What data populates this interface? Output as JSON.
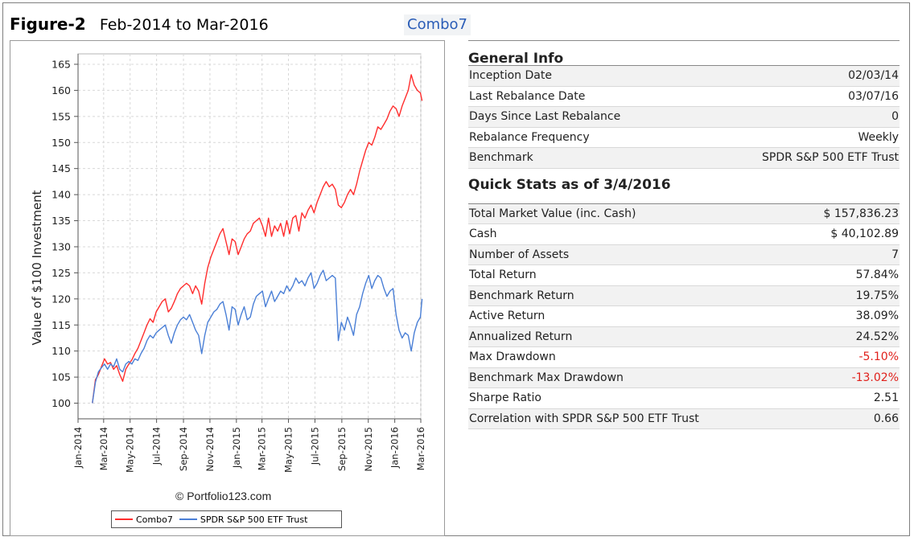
{
  "header": {
    "figure_label": "Figure-2",
    "date_range": "Feb-2014 to Mar-2016",
    "portfolio_tag": "Combo7"
  },
  "chart_data": {
    "type": "line",
    "ylabel": "Value of $100 Investment",
    "xlabel": "",
    "ylim": [
      97,
      167
    ],
    "yticks": [
      100,
      105,
      110,
      115,
      120,
      125,
      130,
      135,
      140,
      145,
      150,
      155,
      160,
      165
    ],
    "xticks": [
      "Jan-2014",
      "Mar-2014",
      "May-2014",
      "Jul-2014",
      "Sep-2014",
      "Nov-2014",
      "Jan-2015",
      "Mar-2015",
      "May-2015",
      "Jul-2015",
      "Sep-2015",
      "Nov-2015",
      "Jan-2016",
      "Mar-2016"
    ],
    "grid": true,
    "watermark": "© Portfolio123.com",
    "legend_position": "bottom",
    "series": [
      {
        "name": "Combo7",
        "color": "#ff2d2d",
        "points": [
          [
            "2014-02-03",
            100
          ],
          [
            "2014-02-10",
            104.5
          ],
          [
            "2014-02-17",
            105.5
          ],
          [
            "2014-02-24",
            107
          ],
          [
            "2014-03-03",
            108.5
          ],
          [
            "2014-03-10",
            107.5
          ],
          [
            "2014-03-17",
            107.8
          ],
          [
            "2014-03-24",
            106.5
          ],
          [
            "2014-03-31",
            107.2
          ],
          [
            "2014-04-07",
            105.5
          ],
          [
            "2014-04-14",
            104.2
          ],
          [
            "2014-04-21",
            106.5
          ],
          [
            "2014-04-28",
            107.5
          ],
          [
            "2014-05-05",
            108.3
          ],
          [
            "2014-05-12",
            109.5
          ],
          [
            "2014-05-19",
            110.5
          ],
          [
            "2014-05-26",
            112
          ],
          [
            "2014-06-02",
            113.5
          ],
          [
            "2014-06-09",
            115
          ],
          [
            "2014-06-16",
            116.2
          ],
          [
            "2014-06-23",
            115.5
          ],
          [
            "2014-06-30",
            117.5
          ],
          [
            "2014-07-07",
            118.5
          ],
          [
            "2014-07-14",
            119.5
          ],
          [
            "2014-07-21",
            120
          ],
          [
            "2014-07-28",
            117.5
          ],
          [
            "2014-08-04",
            118.2
          ],
          [
            "2014-08-11",
            119.5
          ],
          [
            "2014-08-18",
            121
          ],
          [
            "2014-08-25",
            122
          ],
          [
            "2014-09-01",
            122.5
          ],
          [
            "2014-09-08",
            123
          ],
          [
            "2014-09-15",
            122.5
          ],
          [
            "2014-09-22",
            121
          ],
          [
            "2014-09-29",
            122.5
          ],
          [
            "2014-10-06",
            121.5
          ],
          [
            "2014-10-13",
            119
          ],
          [
            "2014-10-20",
            123
          ],
          [
            "2014-10-27",
            126
          ],
          [
            "2014-11-03",
            128
          ],
          [
            "2014-11-10",
            129.5
          ],
          [
            "2014-11-17",
            131
          ],
          [
            "2014-11-24",
            132.5
          ],
          [
            "2014-12-01",
            133.5
          ],
          [
            "2014-12-08",
            131
          ],
          [
            "2014-12-15",
            128.5
          ],
          [
            "2014-12-22",
            131.5
          ],
          [
            "2014-12-29",
            131
          ],
          [
            "2015-01-05",
            128.5
          ],
          [
            "2015-01-12",
            130
          ],
          [
            "2015-01-19",
            131.5
          ],
          [
            "2015-01-26",
            132.5
          ],
          [
            "2015-02-02",
            133
          ],
          [
            "2015-02-09",
            134.5
          ],
          [
            "2015-02-16",
            135
          ],
          [
            "2015-02-23",
            135.5
          ],
          [
            "2015-03-02",
            134
          ],
          [
            "2015-03-09",
            132
          ],
          [
            "2015-03-16",
            135.5
          ],
          [
            "2015-03-23",
            132
          ],
          [
            "2015-03-30",
            134
          ],
          [
            "2015-04-06",
            133
          ],
          [
            "2015-04-13",
            134.5
          ],
          [
            "2015-04-20",
            132
          ],
          [
            "2015-04-27",
            135
          ],
          [
            "2015-05-04",
            132.5
          ],
          [
            "2015-05-11",
            135.5
          ],
          [
            "2015-05-18",
            136
          ],
          [
            "2015-05-25",
            133
          ],
          [
            "2015-06-01",
            136.5
          ],
          [
            "2015-06-08",
            135.5
          ],
          [
            "2015-06-15",
            137
          ],
          [
            "2015-06-22",
            138
          ],
          [
            "2015-06-29",
            136.5
          ],
          [
            "2015-07-06",
            138.5
          ],
          [
            "2015-07-13",
            140
          ],
          [
            "2015-07-20",
            141.5
          ],
          [
            "2015-07-27",
            142.5
          ],
          [
            "2015-08-03",
            141.5
          ],
          [
            "2015-08-10",
            142
          ],
          [
            "2015-08-17",
            141
          ],
          [
            "2015-08-24",
            138
          ],
          [
            "2015-08-31",
            137.5
          ],
          [
            "2015-09-07",
            138.5
          ],
          [
            "2015-09-14",
            140
          ],
          [
            "2015-09-21",
            141
          ],
          [
            "2015-09-28",
            140
          ],
          [
            "2015-10-05",
            142
          ],
          [
            "2015-10-12",
            144.5
          ],
          [
            "2015-10-19",
            146.5
          ],
          [
            "2015-10-26",
            148.5
          ],
          [
            "2015-11-02",
            150
          ],
          [
            "2015-11-09",
            149.5
          ],
          [
            "2015-11-16",
            151
          ],
          [
            "2015-11-23",
            153
          ],
          [
            "2015-11-30",
            152.5
          ],
          [
            "2015-12-07",
            153.5
          ],
          [
            "2015-12-14",
            154.5
          ],
          [
            "2015-12-21",
            156
          ],
          [
            "2015-12-28",
            157
          ],
          [
            "2016-01-04",
            156.5
          ],
          [
            "2016-01-11",
            155
          ],
          [
            "2016-01-18",
            157
          ],
          [
            "2016-01-25",
            158.5
          ],
          [
            "2016-02-01",
            160
          ],
          [
            "2016-02-08",
            163
          ],
          [
            "2016-02-15",
            161
          ],
          [
            "2016-02-22",
            160
          ],
          [
            "2016-02-29",
            159.5
          ],
          [
            "2016-03-04",
            158
          ]
        ]
      },
      {
        "name": "SPDR S&P 500 ETF Trust",
        "color": "#4a7fd6",
        "points": [
          [
            "2014-02-03",
            100
          ],
          [
            "2014-02-10",
            104
          ],
          [
            "2014-02-17",
            106
          ],
          [
            "2014-02-24",
            106.8
          ],
          [
            "2014-03-03",
            107.5
          ],
          [
            "2014-03-10",
            106.5
          ],
          [
            "2014-03-17",
            107.5
          ],
          [
            "2014-03-24",
            107
          ],
          [
            "2014-03-31",
            108.5
          ],
          [
            "2014-04-07",
            106.5
          ],
          [
            "2014-04-14",
            106
          ],
          [
            "2014-04-21",
            107.5
          ],
          [
            "2014-04-28",
            108
          ],
          [
            "2014-05-05",
            107.5
          ],
          [
            "2014-05-12",
            108.5
          ],
          [
            "2014-05-19",
            108.2
          ],
          [
            "2014-05-26",
            109.5
          ],
          [
            "2014-06-02",
            110.5
          ],
          [
            "2014-06-09",
            112
          ],
          [
            "2014-06-16",
            113
          ],
          [
            "2014-06-23",
            112.5
          ],
          [
            "2014-06-30",
            113.5
          ],
          [
            "2014-07-07",
            114
          ],
          [
            "2014-07-14",
            114.5
          ],
          [
            "2014-07-21",
            115
          ],
          [
            "2014-07-28",
            113
          ],
          [
            "2014-08-04",
            111.5
          ],
          [
            "2014-08-11",
            113.5
          ],
          [
            "2014-08-18",
            115
          ],
          [
            "2014-08-25",
            116
          ],
          [
            "2014-09-01",
            116.5
          ],
          [
            "2014-09-08",
            116
          ],
          [
            "2014-09-15",
            117
          ],
          [
            "2014-09-22",
            115.5
          ],
          [
            "2014-09-29",
            114
          ],
          [
            "2014-10-06",
            113
          ],
          [
            "2014-10-13",
            109.5
          ],
          [
            "2014-10-20",
            113
          ],
          [
            "2014-10-27",
            115.5
          ],
          [
            "2014-11-03",
            116.5
          ],
          [
            "2014-11-10",
            117.5
          ],
          [
            "2014-11-17",
            118
          ],
          [
            "2014-11-24",
            119
          ],
          [
            "2014-12-01",
            119.5
          ],
          [
            "2014-12-08",
            117
          ],
          [
            "2014-12-15",
            114
          ],
          [
            "2014-12-22",
            118.5
          ],
          [
            "2014-12-29",
            118
          ],
          [
            "2015-01-05",
            115
          ],
          [
            "2015-01-12",
            117
          ],
          [
            "2015-01-19",
            118.5
          ],
          [
            "2015-01-26",
            116
          ],
          [
            "2015-02-02",
            116.5
          ],
          [
            "2015-02-09",
            119
          ],
          [
            "2015-02-16",
            120.5
          ],
          [
            "2015-02-23",
            121
          ],
          [
            "2015-03-02",
            121.5
          ],
          [
            "2015-03-09",
            118.5
          ],
          [
            "2015-03-16",
            120
          ],
          [
            "2015-03-23",
            121.5
          ],
          [
            "2015-03-30",
            119.5
          ],
          [
            "2015-04-06",
            120.5
          ],
          [
            "2015-04-13",
            121.5
          ],
          [
            "2015-04-20",
            121
          ],
          [
            "2015-04-27",
            122.5
          ],
          [
            "2015-05-04",
            121.5
          ],
          [
            "2015-05-11",
            122.5
          ],
          [
            "2015-05-18",
            124
          ],
          [
            "2015-05-25",
            123
          ],
          [
            "2015-06-01",
            123.5
          ],
          [
            "2015-06-08",
            122.5
          ],
          [
            "2015-06-15",
            124
          ],
          [
            "2015-06-22",
            125
          ],
          [
            "2015-06-29",
            122
          ],
          [
            "2015-07-06",
            123
          ],
          [
            "2015-07-13",
            124.5
          ],
          [
            "2015-07-20",
            125.5
          ],
          [
            "2015-07-27",
            123.5
          ],
          [
            "2015-08-03",
            124
          ],
          [
            "2015-08-10",
            124.5
          ],
          [
            "2015-08-17",
            124
          ],
          [
            "2015-08-24",
            112
          ],
          [
            "2015-08-31",
            115.5
          ],
          [
            "2015-09-07",
            114
          ],
          [
            "2015-09-14",
            116.5
          ],
          [
            "2015-09-21",
            115
          ],
          [
            "2015-09-28",
            113
          ],
          [
            "2015-10-05",
            117
          ],
          [
            "2015-10-12",
            118.5
          ],
          [
            "2015-10-19",
            121
          ],
          [
            "2015-10-26",
            123
          ],
          [
            "2015-11-02",
            124.5
          ],
          [
            "2015-11-09",
            122
          ],
          [
            "2015-11-16",
            123.5
          ],
          [
            "2015-11-23",
            124.5
          ],
          [
            "2015-11-30",
            124
          ],
          [
            "2015-12-07",
            122
          ],
          [
            "2015-12-14",
            120.5
          ],
          [
            "2015-12-21",
            121.5
          ],
          [
            "2015-12-28",
            122
          ],
          [
            "2016-01-04",
            117
          ],
          [
            "2016-01-11",
            114
          ],
          [
            "2016-01-18",
            112.5
          ],
          [
            "2016-01-25",
            113.5
          ],
          [
            "2016-02-01",
            113
          ],
          [
            "2016-02-08",
            110
          ],
          [
            "2016-02-15",
            113.5
          ],
          [
            "2016-02-22",
            115.5
          ],
          [
            "2016-02-29",
            116.5
          ],
          [
            "2016-03-04",
            120
          ]
        ]
      }
    ]
  },
  "info": {
    "general_title": "General Info",
    "general_rows": [
      {
        "label": "Inception Date",
        "value": "02/03/14"
      },
      {
        "label": "Last Rebalance Date",
        "value": "03/07/16"
      },
      {
        "label": "Days Since Last Rebalance",
        "value": "0"
      },
      {
        "label": "Rebalance Frequency",
        "value": "Weekly"
      },
      {
        "label": "Benchmark",
        "value": "SPDR S&P 500 ETF Trust"
      }
    ],
    "stats_title": "Quick Stats as of 3/4/2016",
    "stats_rows": [
      {
        "label": "Total Market Value (inc. Cash)",
        "value": "$ 157,836.23"
      },
      {
        "label": "Cash",
        "value": "$ 40,102.89"
      },
      {
        "label": "Number of Assets",
        "value": "7"
      },
      {
        "label": "Total Return",
        "value": "57.84%"
      },
      {
        "label": "Benchmark Return",
        "value": "19.75%"
      },
      {
        "label": "Active Return",
        "value": "38.09%"
      },
      {
        "label": "Annualized Return",
        "value": "24.52%"
      },
      {
        "label": "Max Drawdown",
        "value": "-5.10%"
      },
      {
        "label": "Benchmark Max Drawdown",
        "value": "-13.02%"
      },
      {
        "label": "Sharpe Ratio",
        "value": "2.51"
      },
      {
        "label": "Correlation with SPDR S&P 500 ETF Trust",
        "value": "0.66"
      }
    ],
    "negative_color": "#e0201b"
  }
}
